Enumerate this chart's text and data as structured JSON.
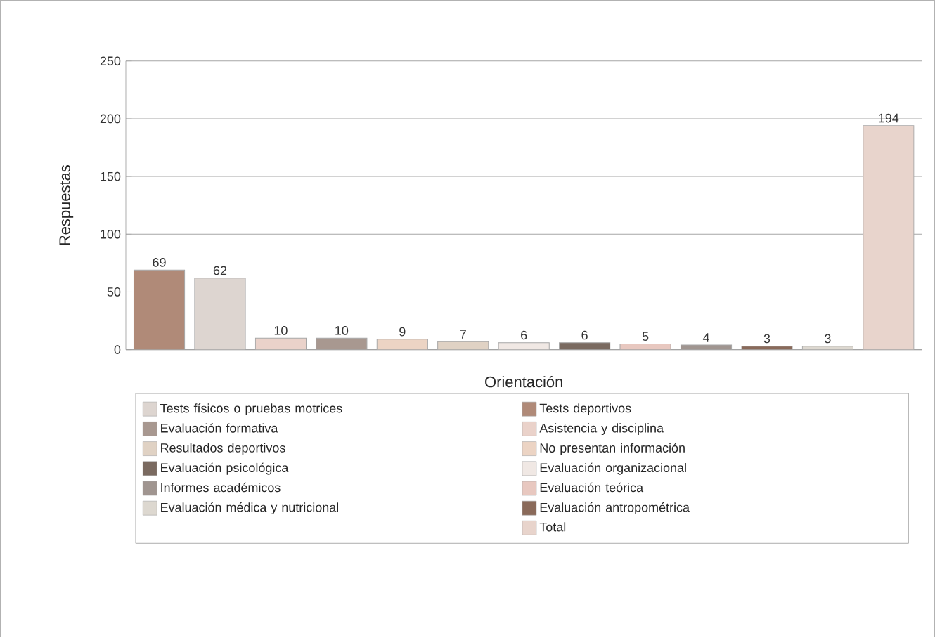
{
  "chart_data": {
    "type": "bar",
    "xlabel": "Orientación",
    "ylabel": "Respuestas",
    "categories": [
      null,
      null,
      null,
      null,
      null,
      null,
      null,
      null,
      null,
      null,
      null,
      null,
      null
    ],
    "series": [
      {
        "name": "Tests físicos o pruebas motrices",
        "color": "#ddd5d0",
        "values": [
          null,
          62,
          null,
          null,
          null,
          null,
          null,
          null,
          null,
          null,
          null,
          null,
          null
        ]
      },
      {
        "name": "Tests deportivos",
        "color": "#b08a78",
        "values": [
          69,
          null,
          null,
          null,
          null,
          null,
          null,
          null,
          null,
          null,
          null,
          null,
          null
        ]
      },
      {
        "name": "Evaluación formativa",
        "color": "#a89890",
        "values": [
          null,
          null,
          null,
          10,
          null,
          null,
          null,
          null,
          null,
          null,
          null,
          null,
          null
        ]
      },
      {
        "name": "Asistencia y disciplina",
        "color": "#ead2ca",
        "values": [
          null,
          null,
          10,
          null,
          null,
          null,
          null,
          null,
          null,
          null,
          null,
          null,
          null
        ]
      },
      {
        "name": "Resultados deportivos",
        "color": "#e0d2c4",
        "values": [
          null,
          null,
          null,
          null,
          null,
          7,
          null,
          null,
          null,
          null,
          null,
          null,
          null
        ]
      },
      {
        "name": "No presentan información",
        "color": "#ecd4c4",
        "values": [
          null,
          null,
          null,
          null,
          9,
          null,
          null,
          null,
          null,
          null,
          null,
          null,
          null
        ]
      },
      {
        "name": "Evaluación psicológica",
        "color": "#7a6a60",
        "values": [
          null,
          null,
          null,
          null,
          null,
          null,
          null,
          6,
          null,
          null,
          null,
          null,
          null
        ]
      },
      {
        "name": "Evaluación organizacional",
        "color": "#f0e8e4",
        "values": [
          null,
          null,
          null,
          null,
          null,
          null,
          6,
          null,
          null,
          null,
          null,
          null,
          null
        ]
      },
      {
        "name": "Informes académicos",
        "color": "#a09590",
        "values": [
          null,
          null,
          null,
          null,
          null,
          null,
          null,
          null,
          null,
          4,
          null,
          null,
          null
        ]
      },
      {
        "name": "Evaluación teórica",
        "color": "#e8c8c0",
        "values": [
          null,
          null,
          null,
          null,
          null,
          null,
          null,
          null,
          5,
          null,
          null,
          null,
          null
        ]
      },
      {
        "name": "Evaluación médica y nutricional",
        "color": "#ddd8d0",
        "values": [
          null,
          null,
          null,
          null,
          null,
          null,
          null,
          null,
          null,
          null,
          null,
          3,
          null
        ]
      },
      {
        "name": "Evaluación antropométrica",
        "color": "#8a6a5a",
        "values": [
          null,
          null,
          null,
          null,
          null,
          null,
          null,
          null,
          null,
          null,
          3,
          null,
          null
        ]
      },
      {
        "name": "Total",
        "color": "#e8d4cc",
        "values": [
          null,
          null,
          null,
          null,
          null,
          null,
          null,
          null,
          null,
          null,
          null,
          null,
          194
        ]
      }
    ],
    "ylim": [
      0,
      250
    ],
    "yticks": [
      0,
      50,
      100,
      150,
      200,
      250
    ],
    "grid": "y",
    "legend": "bottom",
    "data_labels": true,
    "tick_labels": "y"
  }
}
